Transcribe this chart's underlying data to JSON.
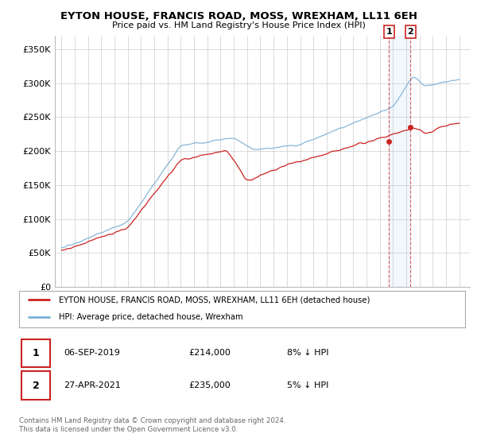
{
  "title": "EYTON HOUSE, FRANCIS ROAD, MOSS, WREXHAM, LL11 6EH",
  "subtitle": "Price paid vs. HM Land Registry's House Price Index (HPI)",
  "ylim": [
    0,
    370000
  ],
  "yticks": [
    0,
    50000,
    100000,
    150000,
    200000,
    250000,
    300000,
    350000
  ],
  "ytick_labels": [
    "£0",
    "£50K",
    "£100K",
    "£150K",
    "£200K",
    "£250K",
    "£300K",
    "£350K"
  ],
  "hpi_color": "#7bafd4",
  "price_color": "#cc2222",
  "t1_year": 2019.71,
  "t2_year": 2021.33,
  "t1_price": 214000,
  "t2_price": 235000,
  "legend_line1": "EYTON HOUSE, FRANCIS ROAD, MOSS, WREXHAM, LL11 6EH (detached house)",
  "legend_line2": "HPI: Average price, detached house, Wrexham",
  "footer1": "Contains HM Land Registry data © Crown copyright and database right 2024.",
  "footer2": "This data is licensed under the Open Government Licence v3.0.",
  "background_color": "#ffffff",
  "grid_color": "#cccccc",
  "shade_color": "#ddeeff"
}
